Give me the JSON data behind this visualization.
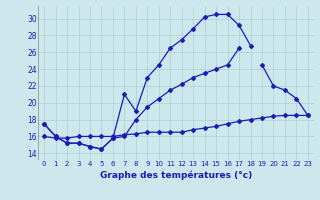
{
  "xlabel": "Graphe des températures (°c)",
  "background_color": "#cde8ec",
  "grid_color": "#aed4d8",
  "line_color": "#1c1cb4",
  "x_ticks": [
    0,
    1,
    2,
    3,
    4,
    5,
    6,
    7,
    8,
    9,
    10,
    11,
    12,
    13,
    14,
    15,
    16,
    17,
    18,
    19,
    20,
    21,
    22,
    23
  ],
  "y_ticks": [
    14,
    16,
    18,
    20,
    22,
    24,
    26,
    28,
    30
  ],
  "ylim": [
    13.2,
    31.5
  ],
  "xlim": [
    -0.5,
    23.5
  ],
  "line_top_x": [
    0,
    1,
    2,
    3,
    4,
    5,
    6,
    7,
    8,
    9,
    10,
    11,
    12,
    13,
    14,
    15,
    16,
    17,
    18,
    19,
    20,
    21,
    22,
    23
  ],
  "line_top_y": [
    17.5,
    16.0,
    15.2,
    15.2,
    14.8,
    14.5,
    15.8,
    21.0,
    19.0,
    23.0,
    24.5,
    26.5,
    27.5,
    28.8,
    30.2,
    30.5,
    30.5,
    29.2,
    26.8,
    null,
    null,
    null,
    null,
    null
  ],
  "line_mid_x": [
    0,
    1,
    2,
    3,
    4,
    5,
    6,
    7,
    8,
    9,
    10,
    11,
    12,
    13,
    14,
    15,
    16,
    17,
    18,
    19,
    20,
    21,
    22,
    23
  ],
  "line_mid_y": [
    17.5,
    16.0,
    15.2,
    15.2,
    14.8,
    14.5,
    15.8,
    16.0,
    18.0,
    19.5,
    20.5,
    21.5,
    22.2,
    23.0,
    23.5,
    24.0,
    24.5,
    26.5,
    null,
    24.5,
    22.0,
    21.5,
    20.5,
    18.5
  ],
  "line_bot_x": [
    0,
    1,
    2,
    3,
    4,
    5,
    6,
    7,
    8,
    9,
    10,
    11,
    12,
    13,
    14,
    15,
    16,
    17,
    18,
    19,
    20,
    21,
    22,
    23
  ],
  "line_bot_y": [
    16.0,
    15.8,
    15.8,
    16.0,
    16.0,
    16.0,
    16.0,
    16.2,
    16.3,
    16.5,
    16.5,
    16.5,
    16.5,
    16.8,
    17.0,
    17.2,
    17.5,
    17.8,
    18.0,
    18.2,
    18.4,
    18.5,
    18.5,
    18.5
  ]
}
